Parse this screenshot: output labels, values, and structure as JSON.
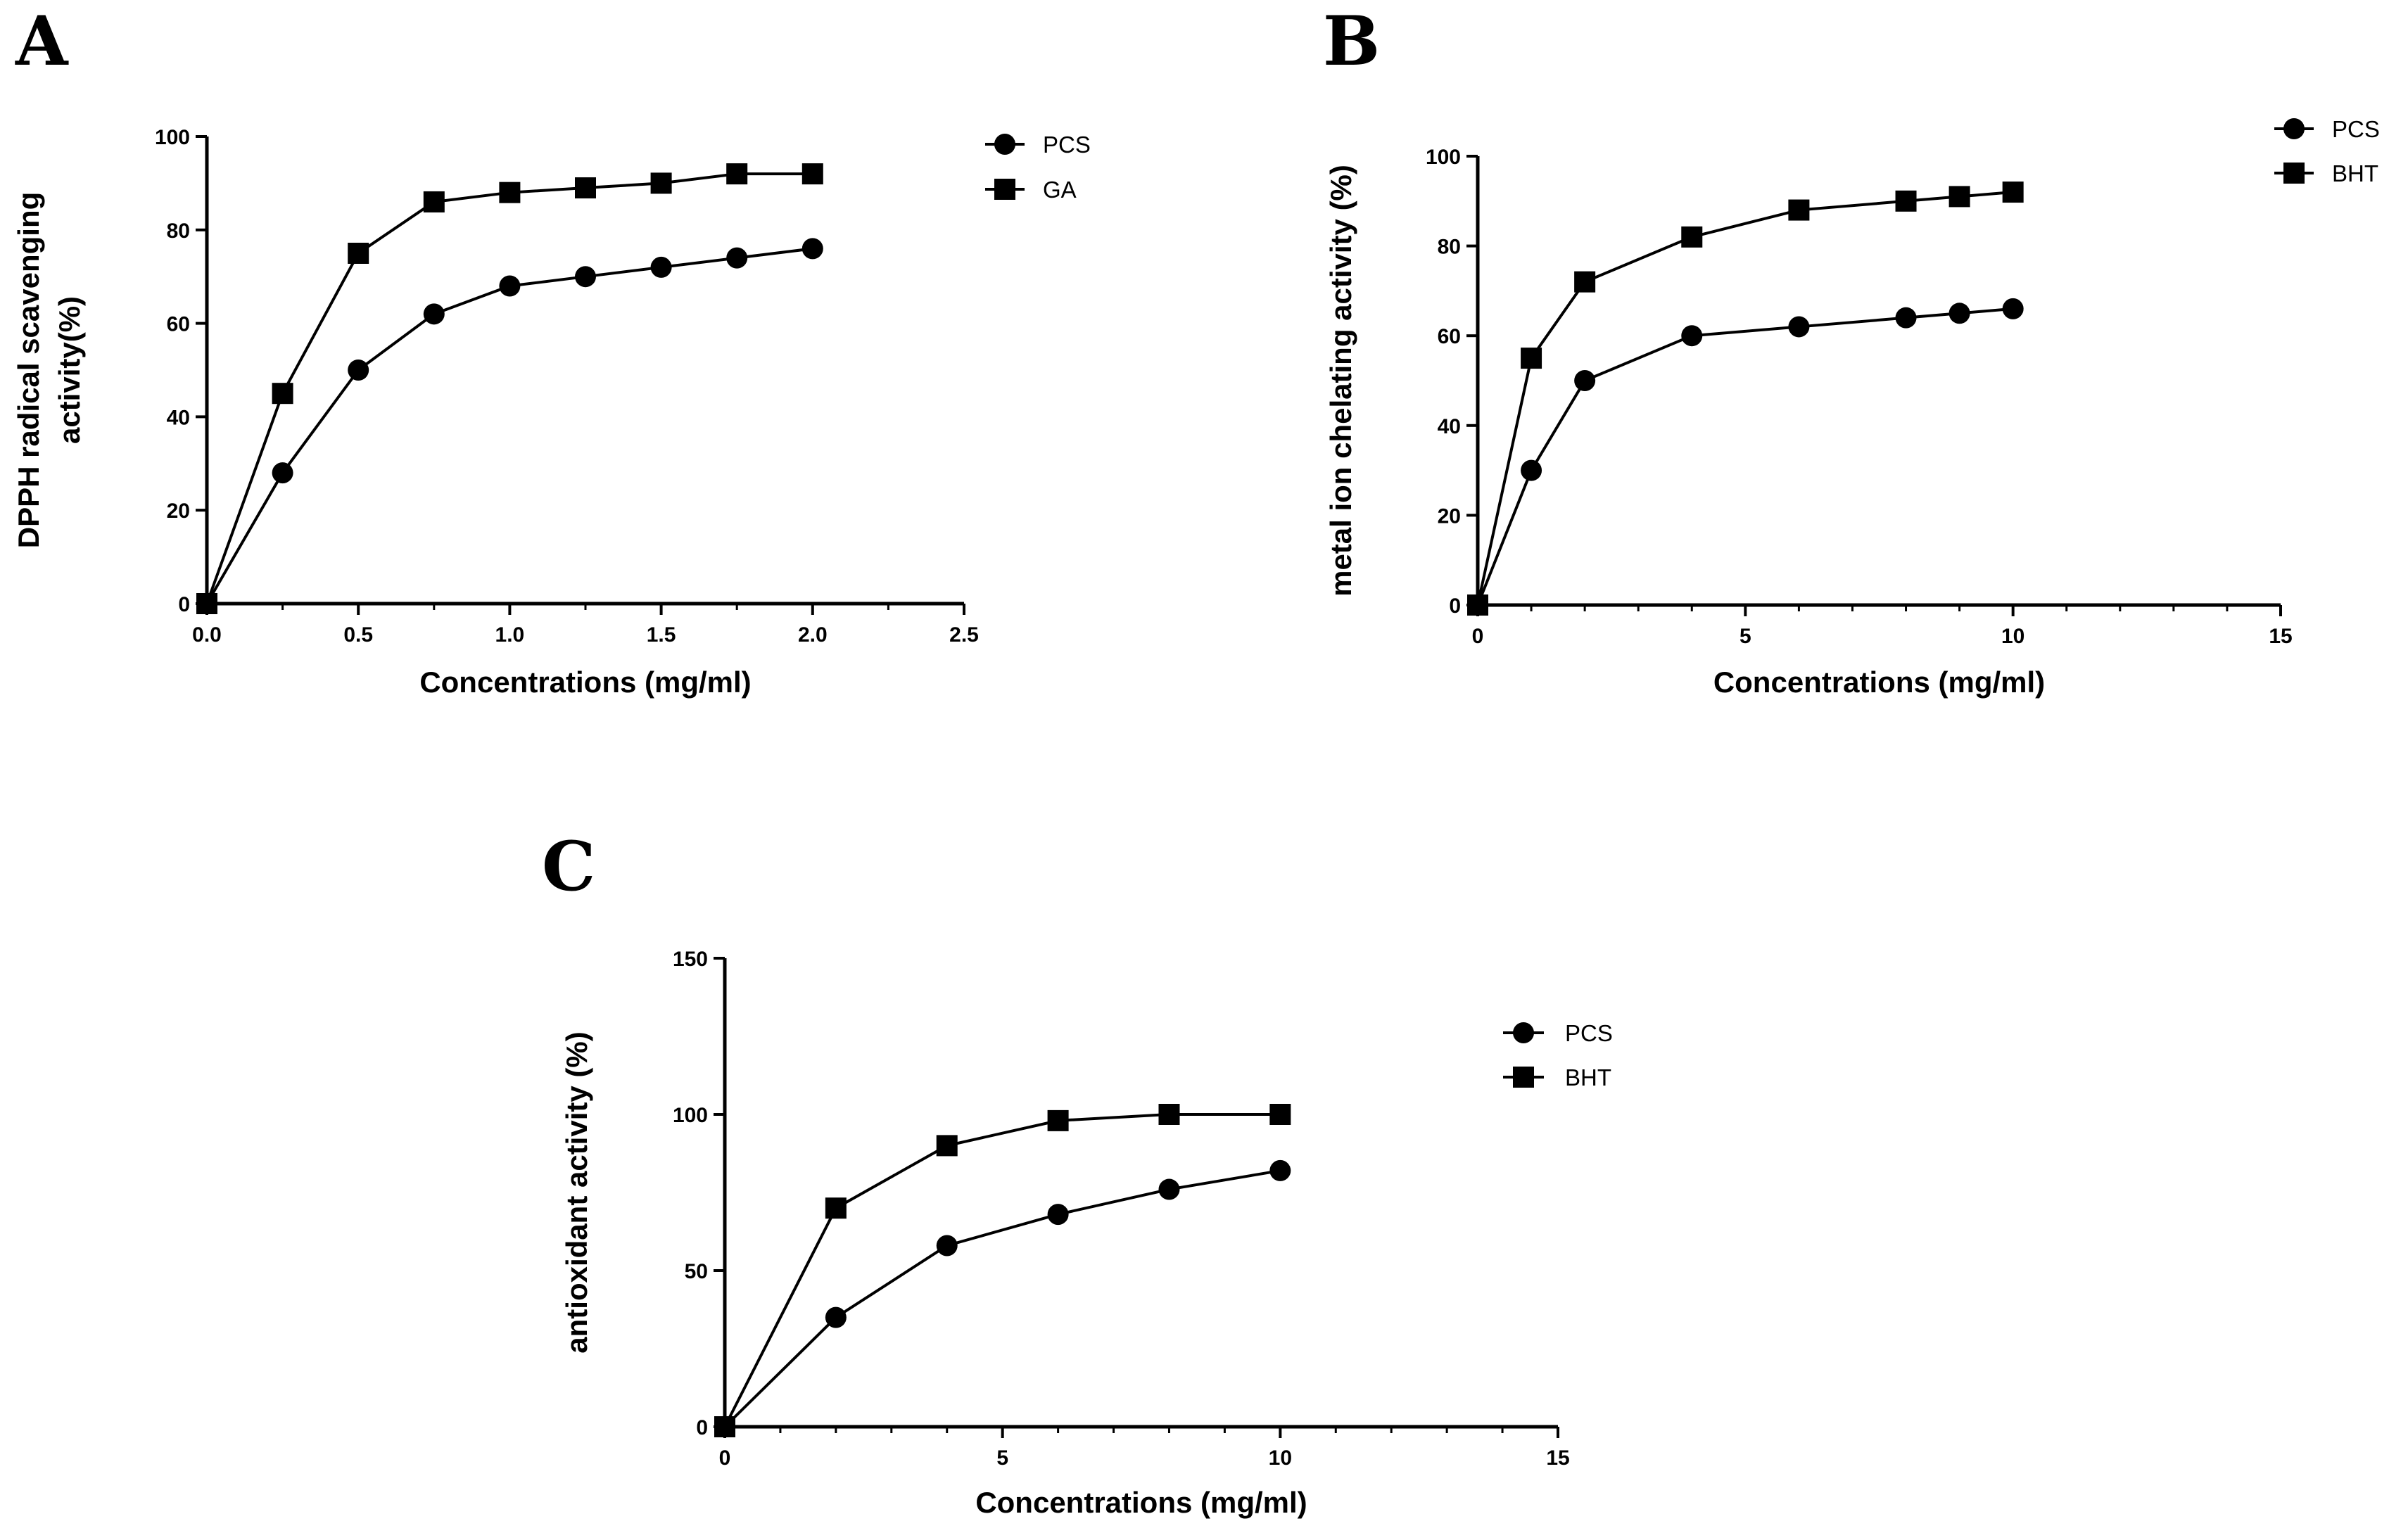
{
  "chart_data": [
    {
      "panel": "A",
      "type": "line",
      "title": "",
      "xlabel": "Concentrations (mg/ml)",
      "ylabel": "DPPH radical scavenging activity(%)",
      "ylabel_lines": [
        "DPPH radical scavenging",
        "activity(%)"
      ],
      "xlim": [
        0,
        2.5
      ],
      "ylim": [
        0,
        100
      ],
      "x_ticks": [
        "0.0",
        "0.5",
        "1.0",
        "1.5",
        "2.0",
        "2.5"
      ],
      "y_ticks": [
        "0",
        "20",
        "40",
        "60",
        "80",
        "100"
      ],
      "x": [
        0,
        0.25,
        0.5,
        0.75,
        1.0,
        1.25,
        1.5,
        1.75,
        2.0
      ],
      "series": [
        {
          "name": "PCS",
          "marker": "circle",
          "values": [
            0,
            28,
            50,
            62,
            68,
            70,
            72,
            74,
            76
          ]
        },
        {
          "name": "GA",
          "marker": "square",
          "values": [
            0,
            45,
            75,
            86,
            88,
            89,
            90,
            92,
            92
          ]
        }
      ],
      "grid": false,
      "legend": "top-right"
    },
    {
      "panel": "B",
      "type": "line",
      "title": "",
      "xlabel": "Concentrations (mg/ml)",
      "ylabel": "metal ion chelating activity (%)",
      "ylabel_lines": [
        "metal ion chelating activity (%)"
      ],
      "xlim": [
        0,
        15
      ],
      "ylim": [
        0,
        100
      ],
      "x_ticks": [
        "0",
        "5",
        "10",
        "15"
      ],
      "y_ticks": [
        "0",
        "20",
        "40",
        "60",
        "80",
        "100"
      ],
      "x": [
        0,
        1,
        2,
        4,
        6,
        8,
        9,
        10
      ],
      "series": [
        {
          "name": "PCS",
          "marker": "circle",
          "values": [
            0,
            30,
            50,
            60,
            62,
            64,
            65,
            66
          ]
        },
        {
          "name": "BHT",
          "marker": "square",
          "values": [
            0,
            55,
            72,
            82,
            88,
            90,
            91,
            92
          ]
        }
      ],
      "grid": false,
      "legend": "top-right"
    },
    {
      "panel": "C",
      "type": "line",
      "title": "",
      "xlabel": "Concentrations (mg/ml)",
      "ylabel": "antioxidant activity (%)",
      "ylabel_lines": [
        "antioxidant activity (%)"
      ],
      "xlim": [
        0,
        15
      ],
      "ylim": [
        0,
        150
      ],
      "x_ticks": [
        "0",
        "5",
        "10",
        "15"
      ],
      "y_ticks": [
        "0",
        "50",
        "100",
        "150"
      ],
      "x": [
        0,
        2,
        4,
        6,
        8,
        10
      ],
      "series": [
        {
          "name": "PCS",
          "marker": "circle",
          "values": [
            0,
            35,
            58,
            68,
            76,
            82
          ]
        },
        {
          "name": "BHT",
          "marker": "square",
          "values": [
            0,
            70,
            90,
            98,
            100,
            100
          ]
        }
      ],
      "grid": false,
      "legend": "right"
    }
  ]
}
